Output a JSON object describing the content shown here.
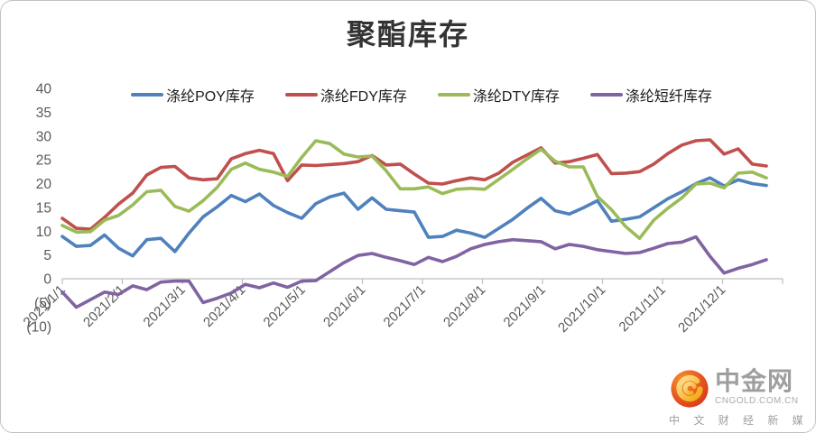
{
  "title": "聚酯库存",
  "watermark": {
    "brand": "中金网",
    "domain": "CNGOLD.COM.CN",
    "tagline": "中 文 财 经 新 媒 体"
  },
  "chart_data": {
    "type": "line",
    "title": "聚酯库存",
    "xlabel": "",
    "ylabel": "",
    "ylim": [
      -10,
      40
    ],
    "grid": false,
    "legend_position": "top",
    "points_per_series": 51,
    "x_tick_labels": [
      "2021/1/1",
      "2021/2/1",
      "2021/3/1",
      "2021/4/1",
      "2021/5/1",
      "2021/6/1",
      "2021/7/1",
      "2021/8/1",
      "2021/9/1",
      "2021/10/1",
      "2021/11/1",
      "2021/12/1"
    ],
    "y_ticks": [
      {
        "label": "40",
        "value": 40
      },
      {
        "label": "35",
        "value": 35
      },
      {
        "label": "30",
        "value": 30
      },
      {
        "label": "25",
        "value": 25
      },
      {
        "label": "20",
        "value": 20
      },
      {
        "label": "15",
        "value": 15
      },
      {
        "label": "10",
        "value": 10
      },
      {
        "label": "5",
        "value": 5
      },
      {
        "label": "0",
        "value": 0
      },
      {
        "label": "(5)",
        "value": -5
      },
      {
        "label": "(10)",
        "value": -10
      }
    ],
    "series": [
      {
        "key": "poy",
        "name": "涤纶POY库存",
        "color": "#4F81BD",
        "values": [
          8.9,
          6.8,
          7.0,
          9.2,
          6.4,
          4.8,
          8.2,
          8.5,
          5.7,
          9.6,
          13.0,
          15.1,
          17.5,
          16.2,
          17.8,
          15.4,
          13.9,
          12.7,
          15.8,
          17.2,
          18.0,
          14.6,
          17.0,
          14.6,
          14.3,
          14.0,
          8.7,
          8.9,
          10.2,
          9.6,
          8.7,
          10.6,
          12.5,
          14.8,
          16.9,
          14.3,
          13.6,
          14.9,
          16.4,
          12.1,
          12.5,
          13.0,
          14.9,
          16.8,
          18.3,
          20.0,
          21.2,
          19.5,
          20.8,
          20.0,
          19.6
        ]
      },
      {
        "key": "fdy",
        "name": "涤纶FDY库存",
        "color": "#C0504D",
        "values": [
          12.7,
          10.6,
          10.4,
          12.9,
          15.7,
          18.0,
          21.8,
          23.4,
          23.6,
          21.2,
          20.8,
          21.0,
          25.2,
          26.3,
          27.0,
          26.3,
          20.6,
          23.9,
          23.8,
          24.0,
          24.2,
          24.6,
          25.9,
          23.9,
          24.1,
          22.0,
          20.1,
          19.9,
          20.6,
          21.2,
          20.8,
          22.2,
          24.5,
          26.0,
          27.5,
          24.3,
          24.6,
          25.3,
          26.1,
          22.1,
          22.2,
          22.5,
          24.1,
          26.3,
          28.1,
          29.0,
          29.2,
          26.2,
          27.3,
          24.1,
          23.7
        ]
      },
      {
        "key": "dty",
        "name": "涤纶DTY库存",
        "color": "#9BBB59",
        "values": [
          11.2,
          9.8,
          9.9,
          12.3,
          13.3,
          15.5,
          18.3,
          18.6,
          15.2,
          14.2,
          16.4,
          19.2,
          23.0,
          24.3,
          23.0,
          22.4,
          21.5,
          25.5,
          29.0,
          28.4,
          26.2,
          25.6,
          25.8,
          22.7,
          18.9,
          18.9,
          19.3,
          17.9,
          18.8,
          19.0,
          18.8,
          20.9,
          23.0,
          25.2,
          27.2,
          24.7,
          23.5,
          23.5,
          17.3,
          14.5,
          11.0,
          8.5,
          12.3,
          14.8,
          17.0,
          19.9,
          20.1,
          19.1,
          22.2,
          22.4,
          21.2
        ]
      },
      {
        "key": "staple",
        "name": "涤纶短纤库存",
        "color": "#8064A2",
        "values": [
          -2.8,
          -6.0,
          -4.4,
          -2.8,
          -3.3,
          -1.5,
          -2.3,
          -0.7,
          -0.5,
          -0.5,
          -5.0,
          -4.1,
          -3.0,
          -1.2,
          -1.9,
          -0.9,
          -1.8,
          -0.5,
          -0.4,
          1.5,
          3.4,
          4.9,
          5.3,
          4.5,
          3.8,
          3.0,
          4.5,
          3.6,
          4.7,
          6.3,
          7.2,
          7.8,
          8.2,
          8.0,
          7.8,
          6.3,
          7.2,
          6.8,
          6.1,
          5.7,
          5.3,
          5.5,
          6.4,
          7.4,
          7.7,
          8.8,
          4.7,
          1.2,
          2.2,
          3.0,
          4.0
        ]
      }
    ]
  }
}
